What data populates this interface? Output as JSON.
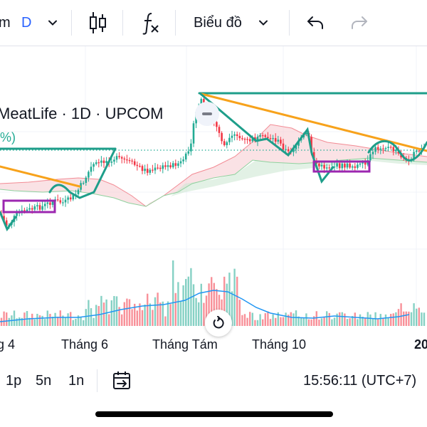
{
  "toolbar": {
    "interval_suffix": "m",
    "interval_value": "D",
    "chart_type_label": "Biểu đồ"
  },
  "legend": {
    "title": "MeatLife · 1D · UPCOM",
    "change_fragment": "%)"
  },
  "time_axis": {
    "labels": [
      "g 4",
      "Tháng 6",
      "Tháng Tám",
      "Tháng 10",
      "20"
    ]
  },
  "bottom_bar": {
    "ranges": [
      "1p",
      "5n",
      "1n"
    ],
    "clock": "15:56:11 (UTC+7)"
  },
  "colors": {
    "accent": "#2962ff",
    "up": "#22ab94",
    "down": "#f23645",
    "trend_orange": "#f7a21b",
    "box_purple": "#9c27b0",
    "avg_line": "#2196f3"
  },
  "icons": [
    "chevron-down-icon",
    "candles-icon",
    "indicator-fx-icon",
    "undo-icon",
    "redo-icon",
    "reset-icon",
    "calendar-range-icon"
  ]
}
